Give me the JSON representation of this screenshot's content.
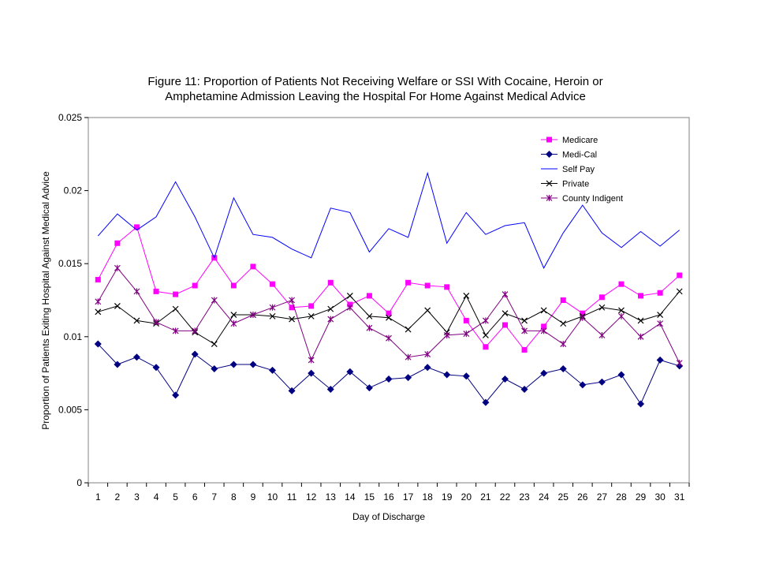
{
  "chart_data": {
    "type": "line",
    "title_lines": [
      "Figure 11: Proportion of Patients Not Receiving Welfare or SSI With Cocaine, Heroin or",
      "Amphetamine Admission Leaving the Hospital For Home Against Medical Advice"
    ],
    "xlabel": "Day of Discharge",
    "ylabel": "Proportion of Patients Exiting Hospital Against Medical Advice",
    "x": [
      1,
      2,
      3,
      4,
      5,
      6,
      7,
      8,
      9,
      10,
      11,
      12,
      13,
      14,
      15,
      16,
      17,
      18,
      19,
      20,
      21,
      22,
      23,
      24,
      25,
      26,
      27,
      28,
      29,
      30,
      31
    ],
    "x_tick_labels": [
      "1",
      "2",
      "3",
      "4",
      "5",
      "6",
      "7",
      "8",
      "9",
      "10",
      "11",
      "12",
      "13",
      "14",
      "15",
      "16",
      "17",
      "18",
      "19",
      "20",
      "21",
      "22",
      "23",
      "24",
      "25",
      "26",
      "27",
      "28",
      "29",
      "30",
      "31"
    ],
    "ylim": [
      0,
      0.025
    ],
    "y_ticks": [
      0,
      0.005,
      0.01,
      0.015,
      0.02,
      0.025
    ],
    "y_tick_labels": [
      "0",
      "0.005",
      "0.01",
      "0.015",
      "0.02",
      "0.025"
    ],
    "grid": false,
    "legend_position": "top-right",
    "series": [
      {
        "name": "Medicare",
        "color": "#ff00ff",
        "marker": "square",
        "line": true,
        "values": [
          0.0139,
          0.0164,
          0.0175,
          0.0131,
          0.0129,
          0.0135,
          0.0154,
          0.0135,
          0.0148,
          0.0136,
          0.012,
          0.0121,
          0.0137,
          0.0122,
          0.0128,
          0.0116,
          0.0137,
          0.0135,
          0.0134,
          0.0111,
          0.0093,
          0.0108,
          0.0091,
          0.0107,
          0.0125,
          0.0116,
          0.0127,
          0.0136,
          0.0128,
          0.013,
          0.0142
        ]
      },
      {
        "name": "Medi-Cal",
        "color": "#000080",
        "marker": "diamond",
        "line": true,
        "values": [
          0.0095,
          0.0081,
          0.0086,
          0.0079,
          0.006,
          0.0088,
          0.0078,
          0.0081,
          0.0081,
          0.0077,
          0.0063,
          0.0075,
          0.0064,
          0.0076,
          0.0065,
          0.0071,
          0.0072,
          0.0079,
          0.0074,
          0.0073,
          0.0055,
          0.0071,
          0.0064,
          0.0075,
          0.0078,
          0.0067,
          0.0069,
          0.0074,
          0.0054,
          0.0084,
          0.008
        ]
      },
      {
        "name": "Self Pay",
        "color": "#0000ff",
        "marker": "none",
        "line": true,
        "values": [
          0.0169,
          0.0184,
          0.0173,
          0.0182,
          0.0206,
          0.0182,
          0.0154,
          0.0195,
          0.017,
          0.0168,
          0.016,
          0.0154,
          0.0188,
          0.0185,
          0.0158,
          0.0174,
          0.0168,
          0.0212,
          0.0164,
          0.0185,
          0.017,
          0.0176,
          0.0178,
          0.0147,
          0.0171,
          0.019,
          0.0171,
          0.0161,
          0.0172,
          0.0162,
          0.0173
        ]
      },
      {
        "name": "Private",
        "color": "#000000",
        "marker": "x",
        "line": true,
        "values": [
          0.0117,
          0.0121,
          0.0111,
          0.0109,
          0.0119,
          0.0103,
          0.0095,
          0.0115,
          0.0115,
          0.0114,
          0.0112,
          0.0114,
          0.0119,
          0.0128,
          0.0114,
          0.0113,
          0.0105,
          0.0118,
          0.0103,
          0.0128,
          0.0101,
          0.0116,
          0.0111,
          0.0118,
          0.0109,
          0.0114,
          0.012,
          0.0118,
          0.0111,
          0.0115,
          0.0131
        ]
      },
      {
        "name": "County Indigent",
        "color": "#800080",
        "marker": "star",
        "line": true,
        "values": [
          0.0124,
          0.0147,
          0.0131,
          0.011,
          0.0104,
          0.0104,
          0.0125,
          0.0109,
          0.0115,
          0.012,
          0.0125,
          0.0084,
          0.0112,
          0.012,
          0.0106,
          0.0099,
          0.0086,
          0.0088,
          0.0101,
          0.0102,
          0.0111,
          0.0129,
          0.0104,
          0.0104,
          0.0095,
          0.0113,
          0.0101,
          0.0114,
          0.01,
          0.0109,
          0.0082
        ]
      }
    ]
  }
}
